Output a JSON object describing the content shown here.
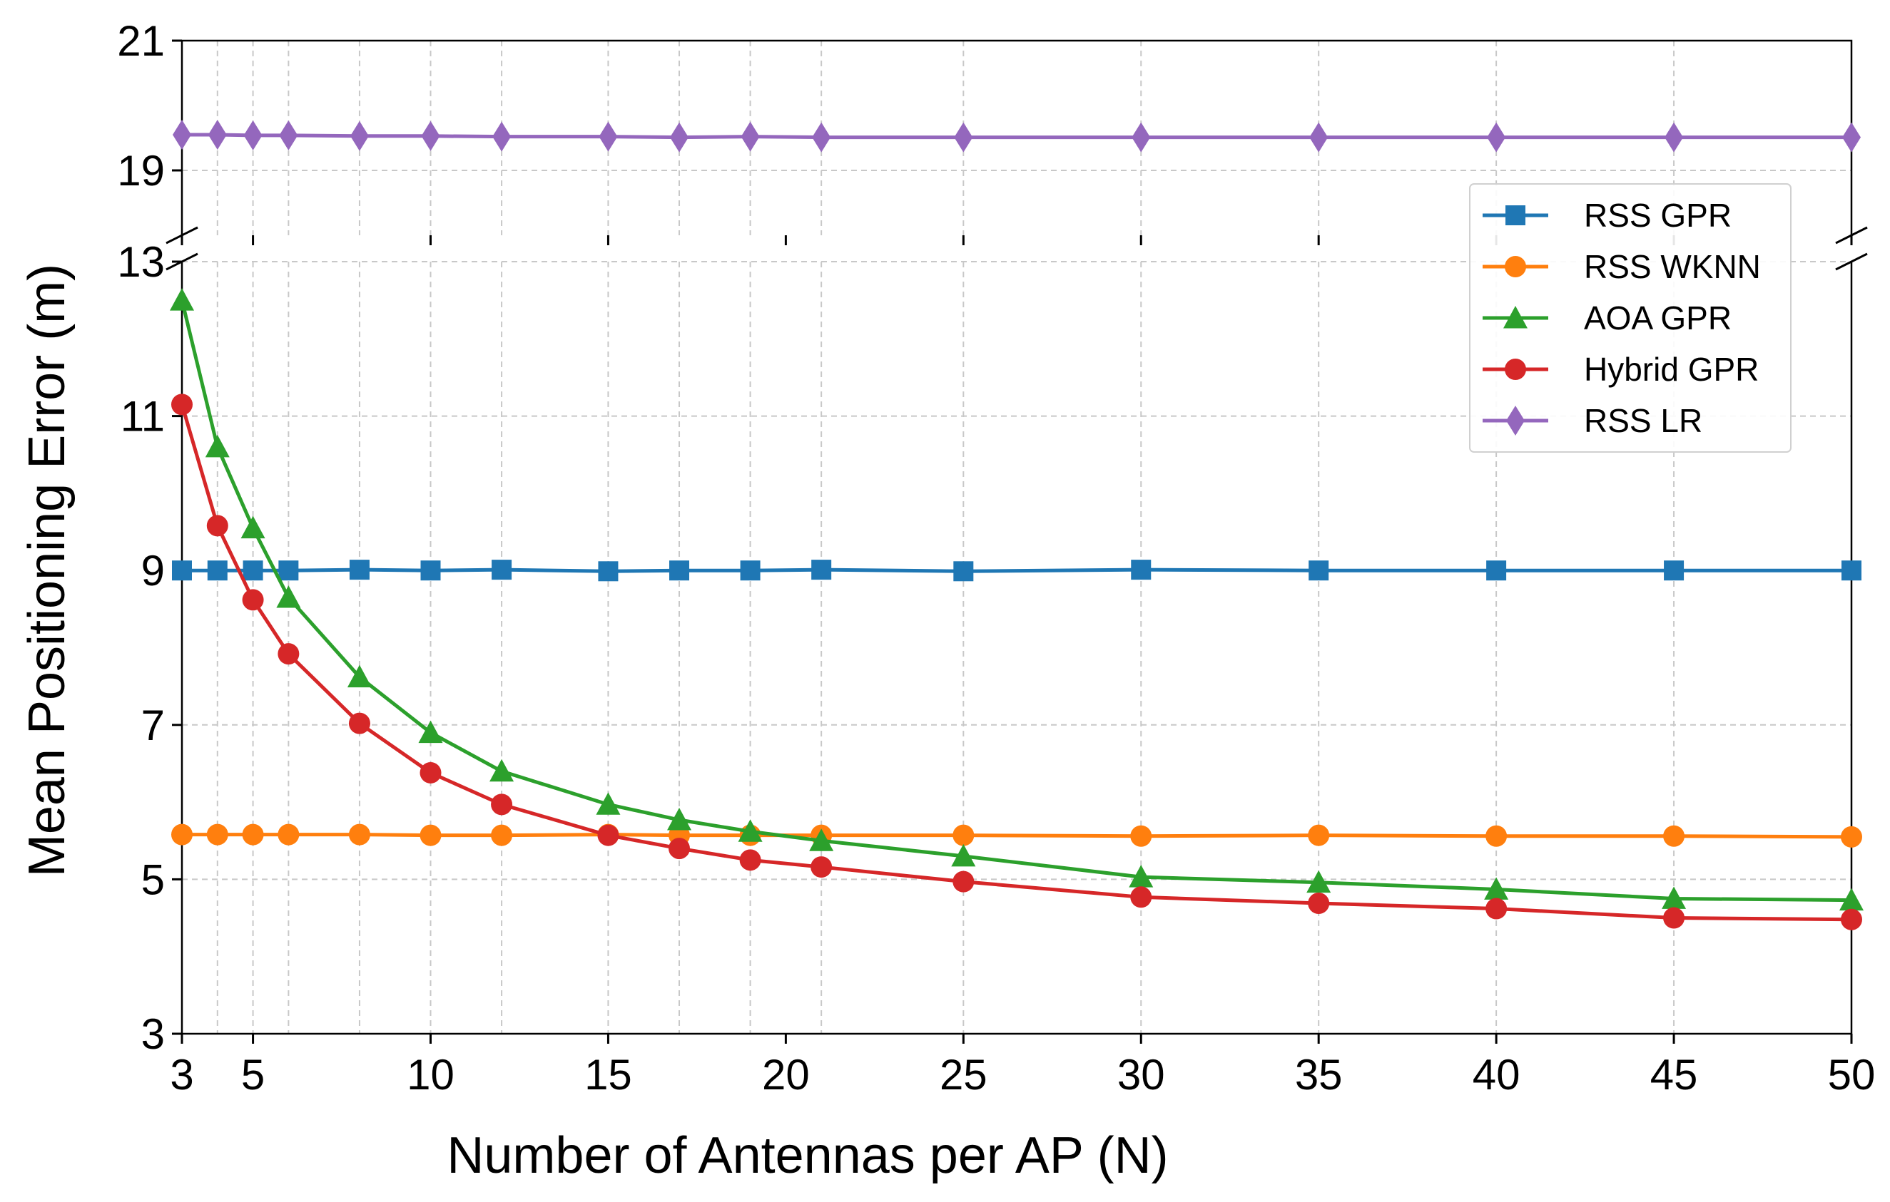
{
  "chart_data": {
    "type": "line",
    "title": "",
    "xlabel": "Number of Antennas per AP (N)",
    "ylabel": "Mean Positioning Error (m)",
    "x": [
      3,
      4,
      5,
      6,
      8,
      10,
      12,
      15,
      17,
      19,
      21,
      25,
      30,
      35,
      40,
      45,
      50
    ],
    "xlim": [
      3,
      50
    ],
    "xticks": [
      3,
      5,
      10,
      15,
      20,
      25,
      30,
      35,
      40,
      45,
      50
    ],
    "broken_y_axis": true,
    "ylim_upper": [
      18,
      21
    ],
    "ylim_lower": [
      3,
      13
    ],
    "yticks_upper": [
      19,
      21
    ],
    "yticks_lower": [
      3,
      5,
      7,
      9,
      11,
      13
    ],
    "grid": true,
    "legend_position": "upper-right",
    "series": [
      {
        "name": "RSS GPR",
        "color": "#1f77b4",
        "marker": "square",
        "values": [
          9.0,
          9.0,
          9.0,
          9.0,
          9.01,
          9.0,
          9.01,
          8.99,
          9.0,
          9.0,
          9.01,
          8.99,
          9.01,
          9.0,
          9.0,
          9.0,
          9.0
        ]
      },
      {
        "name": "RSS WKNN",
        "color": "#ff7f0e",
        "marker": "circle",
        "values": [
          5.58,
          5.58,
          5.58,
          5.58,
          5.58,
          5.57,
          5.57,
          5.58,
          5.57,
          5.57,
          5.57,
          5.57,
          5.56,
          5.57,
          5.56,
          5.56,
          5.55
        ]
      },
      {
        "name": "AOA GPR",
        "color": "#2ca02c",
        "marker": "triangle",
        "values": [
          12.5,
          10.6,
          9.55,
          8.65,
          7.62,
          6.9,
          6.4,
          5.97,
          5.77,
          5.62,
          5.5,
          5.3,
          5.03,
          4.96,
          4.87,
          4.75,
          4.73
        ]
      },
      {
        "name": "Hybrid GPR",
        "color": "#d62728",
        "marker": "circle",
        "values": [
          11.15,
          9.58,
          8.62,
          7.92,
          7.02,
          6.38,
          5.97,
          5.57,
          5.4,
          5.25,
          5.16,
          4.97,
          4.77,
          4.69,
          4.62,
          4.5,
          4.48
        ]
      },
      {
        "name": "RSS LR",
        "color": "#9467bd",
        "marker": "diamond",
        "values": [
          19.55,
          19.55,
          19.54,
          19.54,
          19.53,
          19.53,
          19.52,
          19.52,
          19.51,
          19.52,
          19.51,
          19.51,
          19.51,
          19.51,
          19.51,
          19.51,
          19.51
        ]
      }
    ]
  }
}
